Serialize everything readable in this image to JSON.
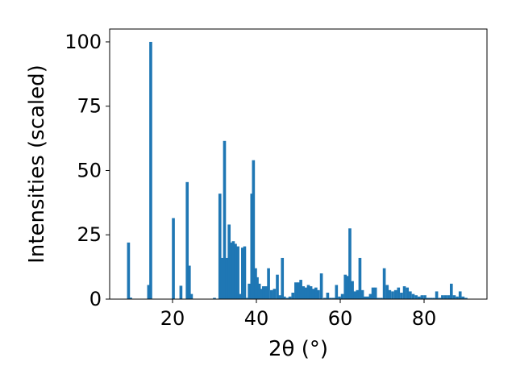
{
  "chart_data": {
    "type": "bar",
    "xlabel": "2θ (°)",
    "ylabel": "Intensities (scaled)",
    "xlim": [
      5,
      95
    ],
    "ylim": [
      0,
      105
    ],
    "x_ticks": [
      20,
      40,
      60,
      80
    ],
    "y_ticks": [
      0,
      25,
      50,
      75,
      100
    ],
    "bar_width": 0.7,
    "color": "#1f77b4",
    "grid": false,
    "x": [
      9.5,
      10.0,
      14.3,
      14.8,
      20.2,
      22.0,
      23.5,
      24.0,
      24.5,
      30.0,
      31.3,
      31.8,
      32.4,
      33.0,
      33.5,
      34.0,
      34.5,
      35.0,
      35.6,
      36.1,
      36.7,
      37.2,
      37.7,
      38.3,
      38.9,
      39.3,
      39.8,
      40.2,
      40.7,
      41.2,
      41.7,
      42.3,
      42.9,
      43.6,
      44.3,
      45.0,
      45.6,
      46.2,
      46.7,
      47.4,
      48.0,
      48.7,
      49.4,
      50.0,
      50.6,
      51.2,
      51.8,
      52.4,
      53.0,
      53.6,
      54.2,
      54.8,
      55.5,
      56.3,
      57.0,
      57.7,
      58.4,
      59.1,
      59.8,
      60.5,
      61.2,
      61.8,
      62.3,
      62.9,
      63.5,
      64.1,
      64.7,
      65.3,
      65.9,
      66.6,
      67.2,
      67.8,
      68.4,
      69.1,
      69.8,
      70.5,
      71.2,
      71.8,
      72.5,
      73.2,
      73.9,
      74.6,
      75.3,
      76.0,
      76.7,
      77.4,
      78.1,
      78.8,
      79.5,
      80.2,
      80.9,
      81.6,
      82.3,
      83.0,
      83.7,
      84.4,
      85.1,
      85.8,
      86.5,
      87.2,
      87.9,
      88.6,
      89.3,
      90.0
    ],
    "values": [
      22,
      0.6,
      5.5,
      100,
      31.5,
      5.2,
      45.5,
      13,
      2,
      0.5,
      41,
      16,
      61.5,
      16,
      29,
      22,
      22.5,
      21.5,
      20.5,
      2,
      20,
      20.5,
      0.5,
      6,
      41,
      54,
      12,
      8.5,
      6,
      4,
      5,
      5,
      12,
      3.5,
      4,
      9.5,
      1.5,
      16,
      1,
      0.5,
      1,
      2.5,
      6.5,
      6.5,
      7.5,
      5,
      4.5,
      5.5,
      5,
      4,
      4.5,
      3.5,
      10,
      0.5,
      2.5,
      0.5,
      0.5,
      5.5,
      1,
      2,
      9.5,
      9,
      27.5,
      7,
      3,
      3.5,
      16,
      3.5,
      1,
      1,
      2,
      4.5,
      4.5,
      0.5,
      0.5,
      12,
      5.5,
      3.5,
      3,
      3.5,
      4.5,
      2.5,
      5,
      4.5,
      3,
      2,
      1.5,
      1,
      1.5,
      1.5,
      0.5,
      0.5,
      0.5,
      3,
      0.5,
      1.5,
      1.5,
      1.5,
      6,
      1.5,
      1,
      3,
      1,
      0.5
    ]
  }
}
